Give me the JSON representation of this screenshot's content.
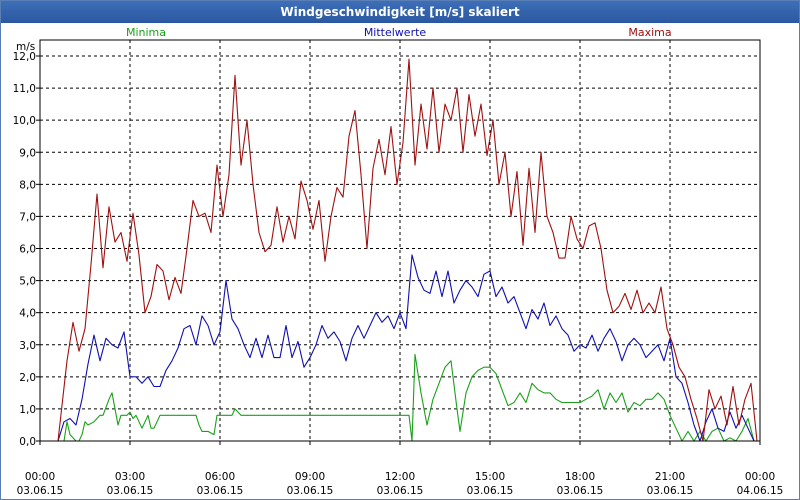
{
  "window": {
    "title": "Windgeschwindigkeit [m/s] skaliert"
  },
  "chart_data": {
    "type": "line",
    "title": "Windgeschwindigkeit [m/s] skaliert",
    "ylabel": "m/s",
    "xlabel": "",
    "ylim": [
      0,
      12
    ],
    "xlim": [
      0,
      24
    ],
    "grid": true,
    "y_ticks": [
      "0,0",
      "1,0",
      "2,0",
      "3,0",
      "4,0",
      "5,0",
      "6,0",
      "7,0",
      "8,0",
      "9,0",
      "10,0",
      "11,0",
      "12,0"
    ],
    "x_ticks": [
      {
        "time": "00:00",
        "date": "03.06.15"
      },
      {
        "time": "03:00",
        "date": "03.06.15"
      },
      {
        "time": "06:00",
        "date": "03.06.15"
      },
      {
        "time": "09:00",
        "date": "03.06.15"
      },
      {
        "time": "12:00",
        "date": "03.06.15"
      },
      {
        "time": "15:00",
        "date": "03.06.15"
      },
      {
        "time": "18:00",
        "date": "03.06.15"
      },
      {
        "time": "21:00",
        "date": "03.06.15"
      },
      {
        "time": "00:00",
        "date": "04.06.15"
      }
    ],
    "series": [
      {
        "name": "Minima",
        "color": "#1aa01a",
        "x": [
          0,
          0.8,
          0.9,
          1.0,
          1.2,
          1.3,
          1.4,
          1.5,
          1.6,
          1.8,
          2.0,
          2.1,
          2.3,
          2.4,
          2.5,
          2.6,
          2.7,
          2.8,
          2.9,
          3.0,
          3.1,
          3.2,
          3.4,
          3.6,
          3.7,
          3.8,
          4.0,
          4.2,
          4.3,
          4.5,
          4.6,
          4.8,
          5.1,
          5.2,
          5.3,
          5.4,
          5.6,
          5.8,
          5.9,
          6.1,
          6.3,
          6.4,
          6.5,
          6.7,
          6.9,
          7.0,
          7.3,
          7.4,
          7.6,
          7.8,
          8.0,
          8.2,
          8.3,
          8.5,
          8.7,
          8.9,
          9.1,
          9.3,
          9.4,
          9.6,
          9.8,
          10.0,
          10.2,
          10.4,
          10.5,
          10.7,
          10.9,
          11.1,
          11.3,
          11.5,
          11.7,
          11.9,
          12.1,
          12.2,
          12.3,
          12.4,
          12.5,
          12.7,
          12.9,
          13.1,
          13.3,
          13.5,
          13.7,
          13.9,
          14.0,
          14.2,
          14.4,
          14.6,
          14.8,
          15.0,
          15.2,
          15.4,
          15.6,
          15.8,
          16.0,
          16.2,
          16.4,
          16.6,
          16.8,
          17.0,
          17.2,
          17.4,
          17.6,
          17.8,
          18.0,
          18.2,
          18.4,
          18.6,
          18.8,
          19.0,
          19.2,
          19.4,
          19.6,
          19.8,
          20.0,
          20.2,
          20.4,
          20.6,
          20.8,
          21.0,
          21.2,
          21.4,
          21.6,
          21.8,
          22.0,
          22.2,
          22.4,
          22.6,
          22.8,
          23.0,
          23.2,
          23.4,
          23.6,
          23.8,
          24.0
        ],
        "values": [
          0.0,
          0.0,
          0.6,
          0.2,
          0.0,
          0.0,
          0.2,
          0.6,
          0.5,
          0.6,
          0.8,
          0.8,
          1.3,
          1.5,
          1.0,
          0.5,
          0.8,
          0.8,
          0.8,
          0.9,
          0.7,
          0.8,
          0.4,
          0.8,
          0.4,
          0.4,
          0.8,
          0.8,
          0.8,
          0.8,
          0.8,
          0.8,
          0.8,
          0.8,
          0.5,
          0.3,
          0.3,
          0.2,
          0.8,
          0.8,
          0.8,
          0.8,
          1.0,
          0.8,
          0.8,
          0.8,
          0.8,
          0.8,
          0.8,
          0.8,
          0.8,
          0.8,
          0.8,
          0.8,
          0.8,
          0.8,
          0.8,
          0.8,
          0.8,
          0.8,
          0.8,
          0.8,
          0.8,
          0.8,
          0.8,
          0.8,
          0.8,
          0.8,
          0.8,
          0.8,
          0.8,
          0.8,
          0.8,
          0.8,
          0.8,
          0.0,
          2.7,
          1.5,
          0.5,
          1.3,
          1.8,
          2.3,
          2.5,
          1.0,
          0.3,
          1.5,
          2.0,
          2.2,
          2.3,
          2.3,
          2.1,
          1.6,
          1.1,
          1.2,
          1.5,
          1.2,
          1.8,
          1.6,
          1.5,
          1.5,
          1.3,
          1.2,
          1.2,
          1.2,
          1.2,
          1.3,
          1.4,
          1.6,
          1.0,
          1.5,
          1.2,
          1.5,
          0.9,
          1.2,
          1.1,
          1.3,
          1.3,
          1.5,
          1.3,
          0.8,
          0.4,
          0.0,
          0.3,
          0.0,
          0.3,
          0.0,
          0.3,
          0.4,
          0.0,
          0.1,
          0.0,
          0.3,
          0.7,
          0.0,
          0.0
        ]
      },
      {
        "name": "Mittelwerte",
        "color": "#1010b0",
        "x": [
          0,
          0.6,
          0.8,
          1.0,
          1.2,
          1.4,
          1.6,
          1.8,
          2.0,
          2.2,
          2.4,
          2.6,
          2.8,
          3.0,
          3.2,
          3.4,
          3.6,
          3.8,
          4.0,
          4.2,
          4.4,
          4.6,
          4.8,
          5.0,
          5.2,
          5.4,
          5.6,
          5.8,
          6.0,
          6.2,
          6.4,
          6.6,
          6.8,
          7.0,
          7.2,
          7.4,
          7.6,
          7.8,
          8.0,
          8.2,
          8.4,
          8.6,
          8.8,
          9.0,
          9.2,
          9.4,
          9.6,
          9.8,
          10.0,
          10.2,
          10.4,
          10.6,
          10.8,
          11.0,
          11.2,
          11.4,
          11.6,
          11.8,
          12.0,
          12.2,
          12.4,
          12.6,
          12.8,
          13.0,
          13.2,
          13.4,
          13.6,
          13.8,
          14.0,
          14.2,
          14.4,
          14.6,
          14.8,
          15.0,
          15.2,
          15.4,
          15.6,
          15.8,
          16.0,
          16.2,
          16.4,
          16.6,
          16.8,
          17.0,
          17.2,
          17.4,
          17.6,
          17.8,
          18.0,
          18.2,
          18.4,
          18.6,
          18.8,
          19.0,
          19.2,
          19.4,
          19.6,
          19.8,
          20.0,
          20.2,
          20.4,
          20.6,
          20.8,
          21.0,
          21.2,
          21.4,
          21.6,
          21.8,
          22.0,
          22.2,
          22.4,
          22.6,
          22.8,
          23.0,
          23.2,
          23.4,
          23.6,
          23.8,
          24.0
        ],
        "values": [
          0.0,
          0.0,
          0.6,
          0.7,
          0.5,
          1.3,
          2.4,
          3.3,
          2.5,
          3.2,
          3.0,
          2.9,
          3.4,
          2.0,
          2.0,
          1.8,
          2.0,
          1.7,
          1.7,
          2.2,
          2.5,
          2.9,
          3.5,
          3.6,
          3.0,
          3.9,
          3.6,
          3.0,
          3.4,
          5.0,
          3.8,
          3.5,
          3.0,
          2.6,
          3.2,
          2.6,
          3.3,
          2.6,
          2.6,
          3.6,
          2.6,
          3.1,
          2.3,
          2.6,
          3.0,
          3.6,
          3.2,
          3.4,
          3.1,
          2.5,
          3.2,
          3.6,
          3.2,
          3.6,
          4.0,
          3.7,
          3.9,
          3.5,
          4.0,
          3.5,
          5.8,
          5.1,
          4.7,
          4.6,
          5.3,
          4.5,
          5.3,
          4.3,
          4.7,
          5.0,
          4.8,
          4.5,
          5.2,
          5.3,
          4.5,
          4.8,
          4.3,
          4.5,
          4.0,
          3.5,
          4.1,
          3.8,
          4.3,
          3.6,
          3.9,
          3.5,
          3.3,
          2.8,
          3.0,
          2.9,
          3.3,
          2.8,
          3.2,
          3.5,
          3.1,
          2.5,
          3.0,
          3.2,
          3.0,
          2.6,
          2.8,
          3.0,
          2.5,
          3.2,
          2.0,
          1.8,
          1.2,
          0.5,
          0.0,
          0.6,
          1.0,
          0.4,
          0.3,
          0.9,
          0.4,
          0.8,
          0.4,
          0.0,
          0.0
        ]
      },
      {
        "name": "Maxima",
        "color": "#a01010",
        "x": [
          0,
          0.6,
          0.9,
          1.1,
          1.3,
          1.5,
          1.7,
          1.9,
          2.1,
          2.3,
          2.5,
          2.7,
          2.9,
          3.1,
          3.3,
          3.5,
          3.7,
          3.9,
          4.1,
          4.3,
          4.5,
          4.7,
          4.9,
          5.1,
          5.3,
          5.5,
          5.7,
          5.9,
          6.1,
          6.3,
          6.5,
          6.7,
          6.9,
          7.1,
          7.3,
          7.5,
          7.7,
          7.9,
          8.1,
          8.3,
          8.5,
          8.7,
          8.9,
          9.1,
          9.3,
          9.5,
          9.7,
          9.9,
          10.1,
          10.3,
          10.5,
          10.7,
          10.9,
          11.1,
          11.3,
          11.5,
          11.7,
          11.9,
          12.1,
          12.3,
          12.5,
          12.7,
          12.9,
          13.1,
          13.3,
          13.5,
          13.7,
          13.9,
          14.1,
          14.3,
          14.5,
          14.7,
          14.9,
          15.1,
          15.3,
          15.5,
          15.7,
          15.9,
          16.1,
          16.3,
          16.5,
          16.7,
          16.9,
          17.1,
          17.3,
          17.5,
          17.7,
          17.9,
          18.1,
          18.3,
          18.5,
          18.7,
          18.9,
          19.1,
          19.3,
          19.5,
          19.7,
          19.9,
          20.1,
          20.3,
          20.5,
          20.7,
          20.9,
          21.1,
          21.3,
          21.5,
          21.7,
          21.9,
          22.1,
          22.3,
          22.5,
          22.7,
          22.9,
          23.1,
          23.3,
          23.5,
          23.7,
          23.9,
          24.0
        ],
        "values": [
          0.0,
          0.0,
          2.5,
          3.7,
          2.8,
          3.5,
          5.5,
          7.7,
          5.4,
          7.3,
          6.2,
          6.5,
          5.6,
          7.1,
          5.8,
          4.0,
          4.5,
          5.5,
          5.3,
          4.4,
          5.1,
          4.6,
          6.0,
          7.5,
          7.0,
          7.1,
          6.5,
          8.6,
          7.0,
          8.3,
          11.4,
          8.6,
          10.0,
          8.0,
          6.5,
          5.9,
          6.1,
          7.3,
          6.2,
          7.0,
          6.3,
          8.1,
          7.5,
          6.6,
          7.5,
          5.6,
          7.0,
          7.9,
          7.6,
          9.5,
          10.3,
          8.3,
          6.0,
          8.5,
          9.4,
          8.3,
          9.8,
          8.0,
          9.3,
          11.9,
          8.6,
          10.5,
          9.1,
          11.0,
          9.0,
          10.5,
          10.0,
          11.0,
          9.0,
          10.8,
          9.5,
          10.5,
          8.9,
          10.0,
          8.0,
          9.0,
          7.0,
          8.4,
          6.1,
          8.5,
          6.5,
          9.0,
          7.0,
          6.5,
          5.7,
          5.7,
          7.0,
          6.3,
          6.0,
          6.7,
          6.8,
          6.0,
          4.7,
          4.0,
          4.2,
          4.6,
          4.1,
          4.7,
          4.0,
          4.3,
          4.0,
          4.8,
          3.5,
          3.0,
          2.3,
          2.0,
          1.3,
          0.7,
          0.0,
          1.6,
          1.0,
          1.4,
          0.5,
          1.7,
          0.5,
          1.3,
          1.8,
          0.0,
          0.0
        ]
      }
    ]
  }
}
